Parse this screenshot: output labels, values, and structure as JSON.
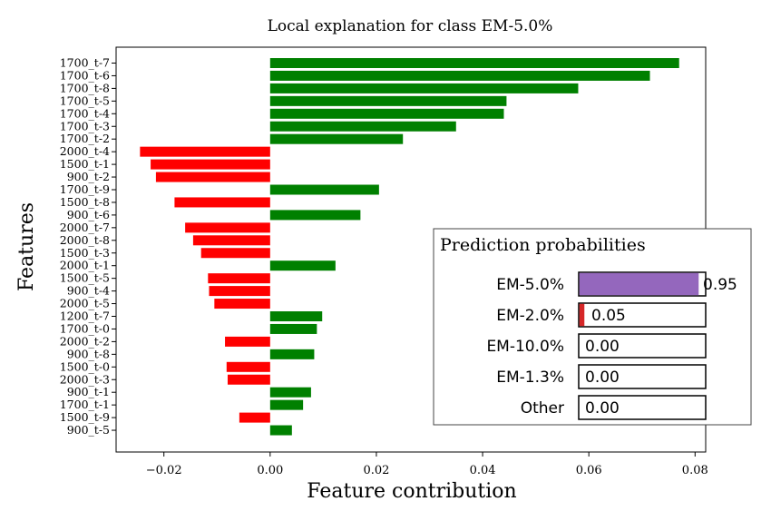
{
  "chart_data": {
    "type": "bar",
    "orientation": "horizontal",
    "title": "Local explanation for class EM-5.0%",
    "xlabel": "Feature contribution",
    "ylabel": "Features",
    "xlim": [
      -0.029,
      0.082
    ],
    "xticks": [
      "−0.02",
      "0.00",
      "0.02",
      "0.04",
      "0.06",
      "0.08"
    ],
    "xtick_values": [
      -0.02,
      0.0,
      0.02,
      0.04,
      0.06,
      0.08
    ],
    "grid": false,
    "colors": {
      "positive": "#008000",
      "negative": "#ff0000"
    },
    "categories": [
      "1700_t-7",
      "1700_t-6",
      "1700_t-8",
      "1700_t-5",
      "1700_t-4",
      "1700_t-3",
      "1700_t-2",
      "2000_t-4",
      "1500_t-1",
      "900_t-2",
      "1700_t-9",
      "1500_t-8",
      "900_t-6",
      "2000_t-7",
      "2000_t-8",
      "1500_t-3",
      "2000_t-1",
      "1500_t-5",
      "900_t-4",
      "2000_t-5",
      "1200_t-7",
      "1700_t-0",
      "2000_t-2",
      "900_t-8",
      "1500_t-0",
      "2000_t-3",
      "900_t-1",
      "1700_t-1",
      "1500_t-9",
      "900_t-5"
    ],
    "values": [
      0.077,
      0.0715,
      0.058,
      0.0445,
      0.044,
      0.035,
      0.025,
      -0.0245,
      -0.0225,
      -0.0215,
      0.0205,
      -0.018,
      0.017,
      -0.016,
      -0.0145,
      -0.013,
      0.0123,
      -0.0117,
      -0.0115,
      -0.0105,
      0.0098,
      0.0088,
      -0.0085,
      0.0083,
      -0.0082,
      -0.008,
      0.0077,
      0.0062,
      -0.0058,
      0.0041
    ]
  },
  "probabilities": {
    "title": "Prediction probabilities",
    "items": [
      {
        "label": "EM-5.0%",
        "value": 0.95,
        "text": "0.95",
        "color": "#9467bd"
      },
      {
        "label": "EM-2.0%",
        "value": 0.05,
        "text": "0.05",
        "color": "#d62728"
      },
      {
        "label": "EM-10.0%",
        "value": 0.0,
        "text": "0.00",
        "color": "#ff7f0e"
      },
      {
        "label": "EM-1.3%",
        "value": 0.0,
        "text": "0.00",
        "color": "#2ca02c"
      },
      {
        "label": "Other",
        "value": 0.0,
        "text": "0.00",
        "color": "#1f77b4"
      }
    ]
  }
}
